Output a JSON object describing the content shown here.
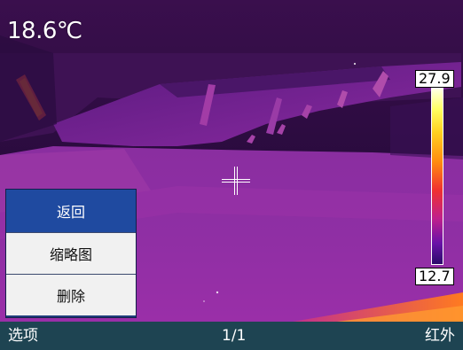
{
  "readout": {
    "temperature": "18.6℃"
  },
  "scale": {
    "max": "27.9",
    "min": "12.7"
  },
  "menu": {
    "items": [
      {
        "label": "返回",
        "active": true
      },
      {
        "label": "缩略图",
        "active": false
      },
      {
        "label": "删除",
        "active": false
      }
    ]
  },
  "bottom_bar": {
    "left": "选项",
    "center": "1/1",
    "right": "红外"
  },
  "colors": {
    "bottom_bar": "#1e4452",
    "menu_active": "#1f4aa0",
    "palette": "ironbow"
  }
}
